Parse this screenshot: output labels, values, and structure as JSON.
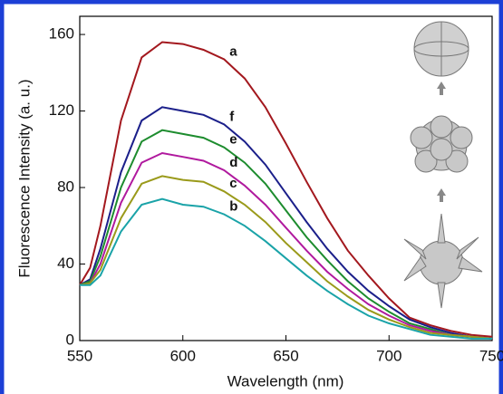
{
  "chart_data": {
    "type": "line",
    "xlabel": "Wavelength (nm)",
    "ylabel": "Fluorescence Intensity (a. u.)",
    "x": [
      550,
      555,
      560,
      570,
      580,
      590,
      600,
      610,
      620,
      630,
      640,
      650,
      660,
      670,
      680,
      690,
      700,
      710,
      720,
      730,
      740,
      750
    ],
    "series": [
      {
        "name": "a",
        "color": "#a3181e",
        "values": [
          29,
          38,
          60,
          115,
          148,
          156,
          155,
          152,
          147,
          137,
          122,
          103,
          83,
          64,
          47,
          34,
          22,
          12,
          8,
          5,
          3,
          2
        ]
      },
      {
        "name": "f",
        "color": "#1b1f8a",
        "values": [
          29,
          32,
          48,
          88,
          115,
          122,
          120,
          118,
          113,
          104,
          92,
          77,
          62,
          48,
          36,
          26,
          18,
          11,
          7,
          4,
          2,
          1
        ]
      },
      {
        "name": "e",
        "color": "#1d8c2e",
        "values": [
          29,
          31,
          44,
          80,
          104,
          110,
          108,
          106,
          101,
          93,
          82,
          68,
          54,
          42,
          31,
          22,
          15,
          9,
          6,
          3,
          2,
          1
        ]
      },
      {
        "name": "d",
        "color": "#b0199e",
        "values": [
          29,
          30,
          40,
          72,
          93,
          98,
          96,
          94,
          89,
          81,
          71,
          59,
          47,
          36,
          27,
          19,
          13,
          8,
          5,
          3,
          2,
          1
        ]
      },
      {
        "name": "c",
        "color": "#9a9a1a",
        "values": [
          29,
          30,
          37,
          64,
          82,
          86,
          84,
          83,
          78,
          71,
          62,
          51,
          41,
          31,
          23,
          16,
          11,
          7,
          4,
          3,
          2,
          1
        ]
      },
      {
        "name": "b",
        "color": "#1aa3a8",
        "values": [
          29,
          29,
          34,
          57,
          71,
          74,
          71,
          70,
          66,
          60,
          52,
          43,
          34,
          26,
          19,
          13,
          9,
          6,
          3,
          2,
          1,
          1
        ]
      }
    ],
    "xlim": [
      550,
      750
    ],
    "xticks": [
      550,
      600,
      650,
      700,
      750
    ],
    "ylim": [
      0,
      169.5
    ],
    "yticks": [
      0,
      40,
      80,
      120,
      160
    ]
  }
}
